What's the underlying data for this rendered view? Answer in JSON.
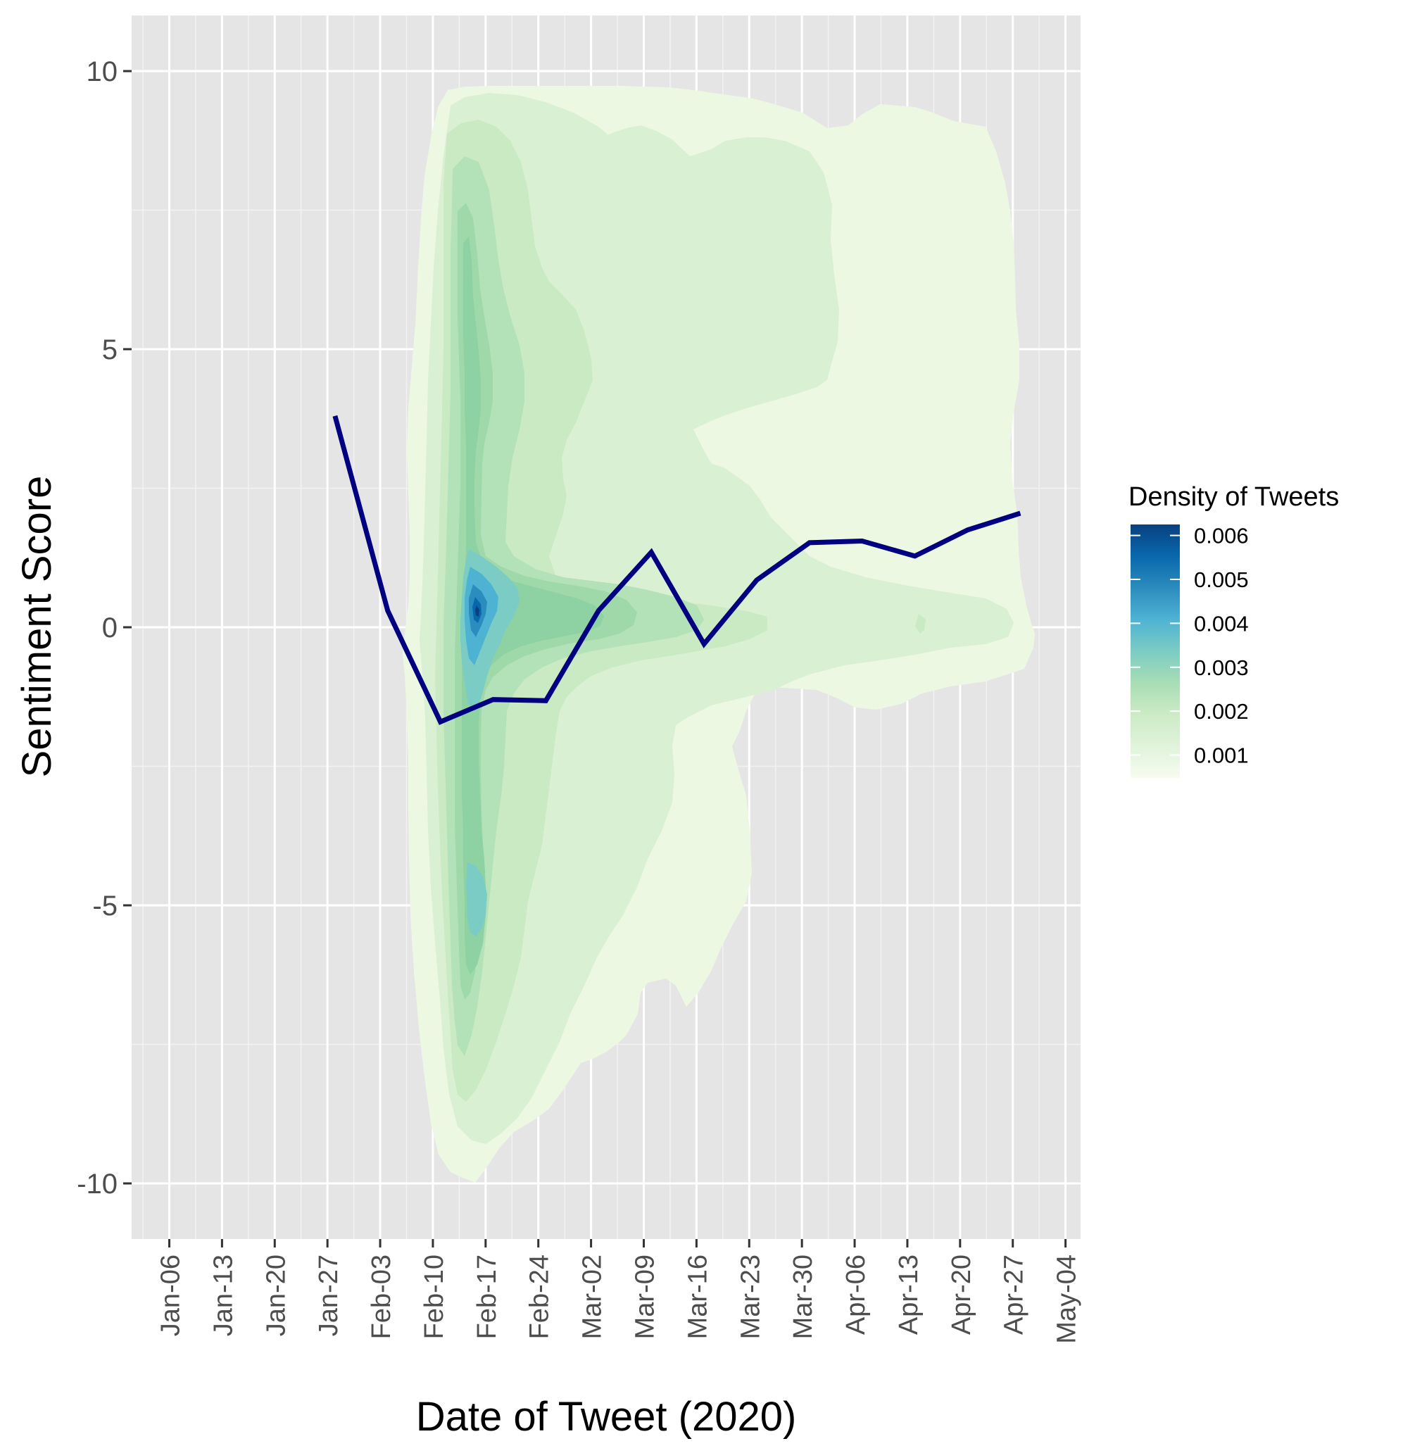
{
  "chart_data": {
    "type": "line",
    "xlabel": "Date of Tweet (2020)",
    "ylabel": "Sentiment Score",
    "ylim": [
      -11,
      11
    ],
    "xlim": [
      "2020-01-01",
      "2020-05-06"
    ],
    "x_ticks": [
      "Jan-06",
      "Jan-13",
      "Jan-20",
      "Jan-27",
      "Feb-03",
      "Feb-10",
      "Feb-17",
      "Feb-24",
      "Mar-02",
      "Mar-09",
      "Mar-16",
      "Mar-23",
      "Mar-30",
      "Apr-06",
      "Apr-13",
      "Apr-20",
      "Apr-27",
      "May-04"
    ],
    "y_ticks": [
      10,
      5,
      0,
      -5,
      -10
    ],
    "grid": true,
    "series": [
      {
        "color": "#000080",
        "points": [
          {
            "x": "2020-01-28",
            "y": 3.8
          },
          {
            "x": "2020-02-04",
            "y": 0.3
          },
          {
            "x": "2020-02-11",
            "y": -1.7
          },
          {
            "x": "2020-02-18",
            "y": -1.3
          },
          {
            "x": "2020-02-25",
            "y": -1.32
          },
          {
            "x": "2020-03-03",
            "y": 0.3
          },
          {
            "x": "2020-03-10",
            "y": 1.35
          },
          {
            "x": "2020-03-17",
            "y": -0.3
          },
          {
            "x": "2020-03-24",
            "y": 0.85
          },
          {
            "x": "2020-03-31",
            "y": 1.52
          },
          {
            "x": "2020-04-07",
            "y": 1.55
          },
          {
            "x": "2020-04-14",
            "y": 1.28
          },
          {
            "x": "2020-04-21",
            "y": 1.75
          },
          {
            "x": "2020-04-28",
            "y": 2.05
          }
        ]
      }
    ],
    "density": {
      "legend_title": "Density of Tweets",
      "legend_position": "right",
      "legend_ticks": [
        "0.006",
        "0.005",
        "0.004",
        "0.003",
        "0.002",
        "0.001"
      ],
      "colors": [
        "#f7fcf0",
        "#e0f3db",
        "#ccebc5",
        "#a8ddb5",
        "#7bccc4",
        "#4eb3d3",
        "#2b8cbe",
        "#0868ac",
        "#084081"
      ]
    }
  }
}
